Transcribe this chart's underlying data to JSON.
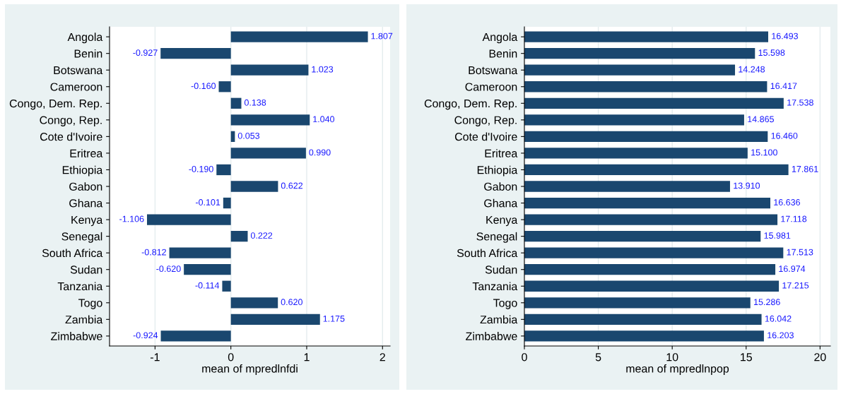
{
  "chart_data": [
    {
      "type": "bar",
      "orientation": "horizontal",
      "xlabel": "mean of mpredlnfdi",
      "categories": [
        "Angola",
        "Benin",
        "Botswana",
        "Cameroon",
        "Congo, Dem. Rep.",
        "Congo, Rep.",
        "Cote d'Ivoire",
        "Eritrea",
        "Ethiopia",
        "Gabon",
        "Ghana",
        "Kenya",
        "Senegal",
        "South Africa",
        "Sudan",
        "Tanzania",
        "Togo",
        "Zambia",
        "Zimbabwe"
      ],
      "values": [
        1.807,
        -0.927,
        1.023,
        -0.16,
        0.138,
        1.04,
        0.053,
        0.99,
        -0.19,
        0.622,
        -0.101,
        -1.106,
        0.222,
        -0.812,
        -0.62,
        -0.114,
        0.62,
        1.175,
        -0.924
      ],
      "value_labels": [
        "1.807",
        "-0.927",
        "1.023",
        "-0.160",
        "0.138",
        "1.040",
        "0.053",
        "0.990",
        "-0.190",
        "0.622",
        "-0.101",
        "-1.106",
        "0.222",
        "-0.812",
        "-0.620",
        "-0.114",
        "0.620",
        "1.175",
        "-0.924"
      ],
      "color": "#1a476f",
      "xlim": [
        -1.6,
        2.1
      ],
      "xticks": [
        -1,
        0,
        1,
        2
      ],
      "grid": "x"
    },
    {
      "type": "bar",
      "orientation": "horizontal",
      "xlabel": "mean of mpredlnpop",
      "categories": [
        "Angola",
        "Benin",
        "Botswana",
        "Cameroon",
        "Congo, Dem. Rep.",
        "Congo, Rep.",
        "Cote d'Ivoire",
        "Eritrea",
        "Ethiopia",
        "Gabon",
        "Ghana",
        "Kenya",
        "Senegal",
        "South Africa",
        "Sudan",
        "Tanzania",
        "Togo",
        "Zambia",
        "Zimbabwe"
      ],
      "values": [
        16.493,
        15.598,
        14.248,
        16.417,
        17.538,
        14.865,
        16.46,
        15.1,
        17.861,
        13.91,
        16.636,
        17.118,
        15.981,
        17.513,
        16.974,
        17.215,
        15.286,
        16.042,
        16.203
      ],
      "value_labels": [
        "16.493",
        "15.598",
        "14.248",
        "16.417",
        "17.538",
        "14.865",
        "16.460",
        "15.100",
        "17.861",
        "13.910",
        "16.636",
        "17.118",
        "15.981",
        "17.513",
        "16.974",
        "17.215",
        "15.286",
        "16.042",
        "16.203"
      ],
      "color": "#1a476f",
      "xlim": [
        0,
        20.7
      ],
      "xticks": [
        0,
        5,
        10,
        15,
        20
      ],
      "grid": "x"
    }
  ]
}
